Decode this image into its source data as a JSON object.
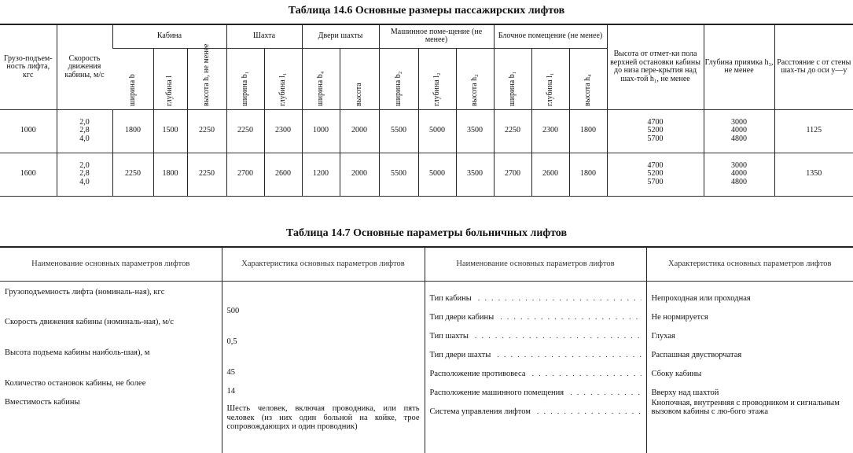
{
  "table1": {
    "title": "Таблица 14.6 Основные размеры пассажирских лифтов",
    "headers": {
      "capacity": "Грузо-подъем-ность лифта, кгс",
      "speed": "Скорость движения кабины, м/с",
      "cabin": "Кабина",
      "shaft": "Шахта",
      "shaft_doors": "Двери шахты",
      "machine_room": "Машинное поме-щение (не менее)",
      "pulley_room": "Блочное помещение (не менее)",
      "top_height": "Высота от отмет-ки пола верхней остановки кабины до низа пере-крытия над шах-той h₁, не менее",
      "pit_depth": "Глубина приямка h₃, не менее",
      "distance": "Расстояние c от стены шах-ты до оси y—y",
      "sub": [
        "ширина b",
        "глубина l",
        "высота h, не менее",
        "ширина b₁",
        "глубина l₁",
        "ширина b₄",
        "высота",
        "ширина b₂",
        "глубина l₂",
        "высота h₂",
        "ширина b₁",
        "глубина l₁",
        "высота h₄"
      ]
    },
    "rows": [
      {
        "capacity": "1000",
        "speed": "2,0\n2,8\n4,0",
        "values": [
          "1800",
          "1500",
          "2250",
          "2250",
          "2300",
          "1000",
          "2000",
          "5500",
          "5000",
          "3500",
          "2250",
          "2300",
          "1800"
        ],
        "top_height": "4700\n5200\n5700",
        "pit_depth": "3000\n4000\n4800",
        "distance": "1125"
      },
      {
        "capacity": "1600",
        "speed": "2,0\n2,8\n4,0",
        "values": [
          "2250",
          "1800",
          "2250",
          "2700",
          "2600",
          "1200",
          "2000",
          "5500",
          "5000",
          "3500",
          "2700",
          "2600",
          "1800"
        ],
        "top_height": "4700\n5200\n5700",
        "pit_depth": "3000\n4000\n4800",
        "distance": "1350"
      }
    ]
  },
  "table2": {
    "title": "Таблица 14.7 Основные параметры больничных лифтов",
    "headers": [
      "Наименование основных параметров лифтов",
      "Характеристика основных параметров лифтов",
      "Наименование основных параметров лифтов",
      "Характеристика основных параметров лифтов"
    ],
    "left": [
      {
        "name": "Грузоподъемность лифта (номиналь-ная), кгс",
        "value": "500"
      },
      {
        "name": "Скорость движения кабины (номиналь-ная), м/с",
        "value": "0,5"
      },
      {
        "name": "Высота подъема кабины наиболь-шая), м",
        "value": "45"
      },
      {
        "name": "Количество остановок кабины, не более",
        "value": "14"
      },
      {
        "name": "Вместимость кабины",
        "value": "Шесть человек, включая проводника, или пять человек (из них один больной на койке, трое сопровождающих и один проводник)"
      }
    ],
    "right": [
      {
        "name": "Тип кабины",
        "value": "Непроходная или проходная"
      },
      {
        "name": "Тип двери кабины",
        "value": "Не нормируется"
      },
      {
        "name": "Тип шахты",
        "value": "Глухая"
      },
      {
        "name": "Тип двери шахты",
        "value": "Распашная двустворчатая"
      },
      {
        "name": "Расположение противовеса",
        "value": "Сбоку кабины"
      },
      {
        "name": "Расположение машинного помещения",
        "value": "Вверху над шахтой"
      },
      {
        "name": "Система управления лифтом",
        "value": "Кнопочная, внутренняя с проводником и сигнальным вызовом кабины с лю-бого этажа"
      }
    ]
  }
}
